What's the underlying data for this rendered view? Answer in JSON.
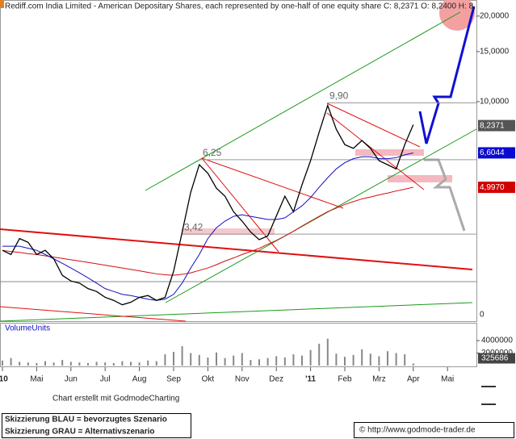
{
  "chart_data": {
    "type": "line",
    "title": "Rediff.com India Limited - American Depositary Shares, each represented by one-half of one equity share C: 8,2371 O: 8,2400 H: 8,",
    "log_scale": true,
    "ylim": [
      1.69,
      21.9
    ],
    "yticks": [
      {
        "value": 20,
        "label": "20,0000"
      },
      {
        "value": 15,
        "label": "15,0000"
      },
      {
        "value": 10,
        "label": "10,0000"
      }
    ],
    "axis_floor_label": "0",
    "categories": [
      "'10",
      null,
      null,
      null,
      "Mai",
      null,
      null,
      null,
      "Jun",
      null,
      null,
      null,
      "Jul",
      null,
      null,
      null,
      "Aug",
      null,
      null,
      null,
      "Sep",
      null,
      null,
      null,
      "Okt",
      null,
      null,
      null,
      "Nov",
      null,
      null,
      null,
      "Dez",
      null,
      null,
      null,
      "'11",
      null,
      null,
      null,
      "Feb",
      null,
      null,
      null,
      "Mrz",
      null,
      null,
      null,
      "Apr",
      null,
      null,
      null,
      "Mai",
      null,
      null,
      null
    ],
    "series": [
      {
        "color": "#000000",
        "values": [
          3.0,
          2.9,
          3.3,
          3.2,
          2.9,
          3.0,
          2.8,
          2.45,
          2.34,
          2.3,
          2.2,
          2.15,
          2.05,
          2.0,
          1.93,
          1.97,
          2.05,
          2.08,
          2.0,
          2.05,
          2.53,
          3.48,
          4.8,
          6.0,
          5.6,
          4.96,
          4.65,
          4.1,
          3.8,
          3.48,
          3.27,
          3.37,
          3.96,
          4.65,
          4.1,
          5.1,
          6.2,
          7.8,
          9.7,
          8.0,
          7.06,
          6.85,
          7.3,
          6.85,
          6.2,
          6.0,
          5.8,
          7.06,
          8.3,
          null,
          null,
          null,
          null,
          null,
          null,
          null
        ]
      },
      {
        "color": "#1010c0",
        "values": [
          3.1,
          3.1,
          3.1,
          3.05,
          3.0,
          2.9,
          2.8,
          2.7,
          2.6,
          2.5,
          2.4,
          2.3,
          2.2,
          2.15,
          2.1,
          2.08,
          2.05,
          2.02,
          2.0,
          2.02,
          2.1,
          2.3,
          2.6,
          2.9,
          3.3,
          3.6,
          3.8,
          3.95,
          4.0,
          3.95,
          3.9,
          3.85,
          3.85,
          3.9,
          4.1,
          4.3,
          4.6,
          5.0,
          5.4,
          5.8,
          6.1,
          6.3,
          6.4,
          6.4,
          6.3,
          6.3,
          6.35,
          6.5,
          6.6,
          null,
          null,
          null,
          null,
          null,
          null,
          null
        ]
      },
      {
        "color": "#d01010",
        "values": [
          3.0,
          2.97,
          2.95,
          2.92,
          2.9,
          2.87,
          2.84,
          2.81,
          2.78,
          2.75,
          2.72,
          2.69,
          2.66,
          2.63,
          2.6,
          2.57,
          2.54,
          2.51,
          2.48,
          2.46,
          2.45,
          2.47,
          2.5,
          2.55,
          2.6,
          2.67,
          2.75,
          2.82,
          2.9,
          2.97,
          3.05,
          3.15,
          3.25,
          3.37,
          3.5,
          3.65,
          3.8,
          3.95,
          4.1,
          4.22,
          4.35,
          4.45,
          4.55,
          4.62,
          4.7,
          4.77,
          4.85,
          4.92,
          5.0,
          null,
          null,
          null,
          null,
          null,
          null,
          null
        ]
      }
    ],
    "levels": [
      {
        "value": 9.9,
        "label": "9,90"
      },
      {
        "value": 6.25,
        "label": "6,25"
      },
      {
        "value": 3.42,
        "label": "3,42"
      }
    ],
    "price_tags": [
      {
        "value": 8.2371,
        "label": "8,2371",
        "color": "#555555"
      },
      {
        "value": 6.6044,
        "label": "6,6044",
        "color": "#0a0ad0"
      },
      {
        "value": 4.997,
        "label": "4,9970",
        "color": "#d00000"
      }
    ],
    "volume": {
      "title": "VolumeUnits",
      "ylim": [
        0,
        5300000
      ],
      "yticks": [
        4000000,
        2000000
      ],
      "color": "#888888",
      "values": [
        800000,
        1200000,
        600000,
        500000,
        400000,
        700000,
        500000,
        900000,
        600000,
        500000,
        400000,
        600000,
        500000,
        400000,
        700000,
        600000,
        500000,
        800000,
        700000,
        1800000,
        2200000,
        3100000,
        2000000,
        1700000,
        1300000,
        2100000,
        1200000,
        1600000,
        2000000,
        900000,
        1000000,
        1200000,
        1500000,
        1300000,
        1800000,
        1600000,
        2500000,
        3500000,
        4300000,
        1900000,
        1400000,
        1700000,
        2600000,
        1900000,
        1500000,
        2300000,
        2000000,
        1800000,
        325686,
        null,
        null,
        null,
        null,
        null,
        null,
        null
      ],
      "last_tag": 325686
    },
    "credit": "Chart erstellt mit GodmodeCharting",
    "legend_notes": [
      "Skizzierung BLAU = bevorzugtes Szenario",
      "Skizzierung GRAU = Alternativszenario"
    ],
    "source": "© http://www.godmode-trader.de"
  }
}
